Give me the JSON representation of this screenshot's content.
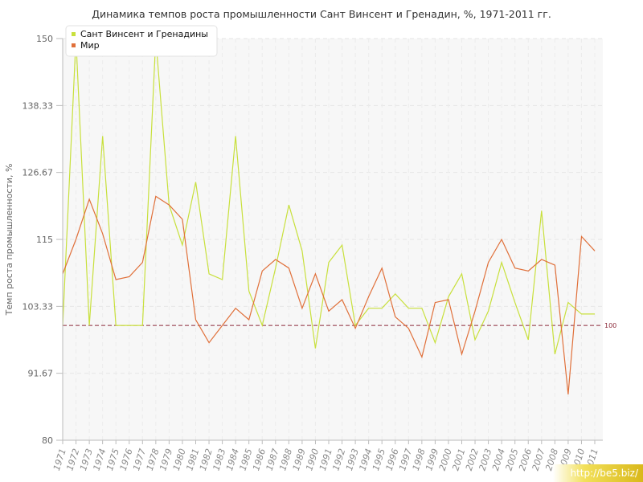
{
  "chart_data": {
    "type": "line",
    "title": "Динамика темпов роста промышленности Сант Винсент и Гренадин, %, 1971-2011 гг.",
    "xlabel": "",
    "ylabel": "Темп роста промышленности, %",
    "ylim": [
      80,
      150
    ],
    "yticks": [
      "80",
      "91.67",
      "103.33",
      "115",
      "126.67",
      "138.33",
      "150"
    ],
    "categories": [
      "1971",
      "1972",
      "1973",
      "1974",
      "1975",
      "1976",
      "1977",
      "1978",
      "1979",
      "1980",
      "1981",
      "1982",
      "1983",
      "1984",
      "1985",
      "1986",
      "1987",
      "1988",
      "1989",
      "1990",
      "1991",
      "1992",
      "1993",
      "1994",
      "1995",
      "1996",
      "1997",
      "1998",
      "1999",
      "2000",
      "2001",
      "2002",
      "2003",
      "2004",
      "2005",
      "2006",
      "2007",
      "2008",
      "2009",
      "2010",
      "2011"
    ],
    "series": [
      {
        "name": "Сант Винсент и Гренадины",
        "color": "#c8e03c",
        "values": [
          100,
          150,
          100,
          133,
          100,
          100,
          100,
          150,
          121,
          114,
          125,
          109,
          108,
          133,
          106,
          100,
          110,
          121,
          113,
          96,
          111,
          114,
          100,
          103,
          103,
          105.5,
          103,
          103,
          97,
          105,
          109,
          97.5,
          102.5,
          111,
          104,
          97.5,
          120,
          95,
          104,
          102,
          102
        ]
      },
      {
        "name": "Мир",
        "color": "#e0703a",
        "values": [
          109,
          115,
          122,
          116,
          108,
          108.5,
          111,
          122.5,
          121,
          118.5,
          101,
          97,
          100,
          103,
          101,
          109.5,
          111.5,
          110,
          103,
          109,
          102.5,
          104.5,
          99.5,
          105,
          110,
          101.5,
          99.5,
          94.5,
          104,
          104.5,
          95,
          102.5,
          111,
          115,
          110,
          109.5,
          111.5,
          110.5,
          88,
          115.5,
          113
        ]
      }
    ],
    "reference_line": {
      "value": 100,
      "label": "100",
      "color": "#8b2a3a"
    },
    "grid": true,
    "legend_position": "top-left"
  },
  "watermark": "http://be5.biz/"
}
